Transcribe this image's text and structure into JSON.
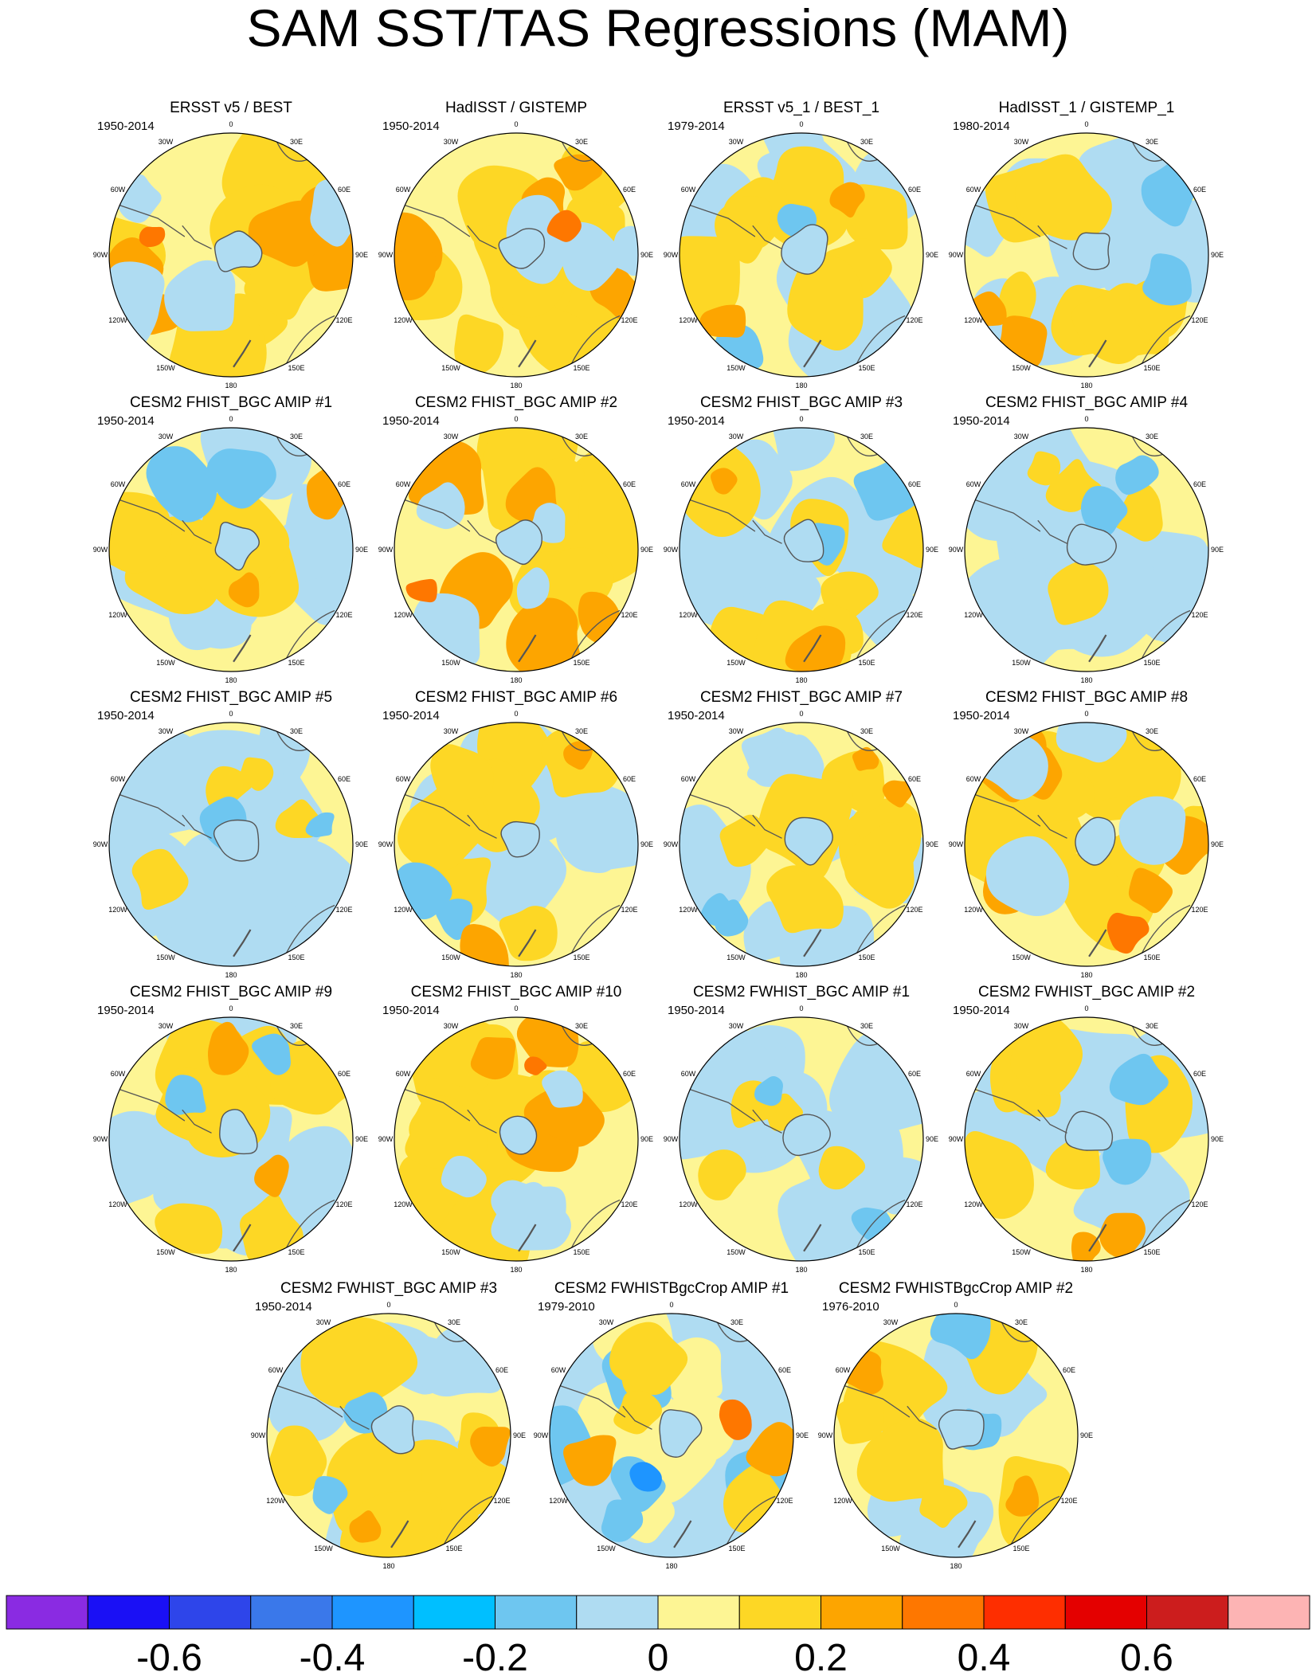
{
  "figure": {
    "title": "SAM SST/TAS Regressions (MAM)"
  },
  "chart_data": {
    "type": "polar-contour-map-panels",
    "title": "SAM SST/TAS Regressions (MAM)",
    "projection": "south-polar stereographic",
    "longitude_labels": [
      "0",
      "30E",
      "60E",
      "90E",
      "120E",
      "150E",
      "180",
      "150W",
      "120W",
      "90W",
      "60W",
      "30W"
    ],
    "panels": [
      {
        "name": "ERSST v5 / BEST",
        "period": "1950-2014",
        "pattern": "warm"
      },
      {
        "name": "HadISST / GISTEMP",
        "period": "1950-2014",
        "pattern": "warm"
      },
      {
        "name": "ERSST v5_1 / BEST_1",
        "period": "1979-2014",
        "pattern": "mixed"
      },
      {
        "name": "HadISST_1 / GISTEMP_1",
        "period": "1980-2014",
        "pattern": "mixed"
      },
      {
        "name": "CESM2 FHIST_BGC AMIP #1",
        "period": "1950-2014",
        "pattern": "mixed"
      },
      {
        "name": "CESM2 FHIST_BGC AMIP #2",
        "period": "1950-2014",
        "pattern": "warm"
      },
      {
        "name": "CESM2 FHIST_BGC AMIP #3",
        "period": "1950-2014",
        "pattern": "mixed"
      },
      {
        "name": "CESM2 FHIST_BGC AMIP #4",
        "period": "1950-2014",
        "pattern": "cool"
      },
      {
        "name": "CESM2 FHIST_BGC AMIP #5",
        "period": "1950-2014",
        "pattern": "cool"
      },
      {
        "name": "CESM2 FHIST_BGC AMIP #6",
        "period": "1950-2014",
        "pattern": "mixed"
      },
      {
        "name": "CESM2 FHIST_BGC AMIP #7",
        "period": "1950-2014",
        "pattern": "mixed"
      },
      {
        "name": "CESM2 FHIST_BGC AMIP #8",
        "period": "1950-2014",
        "pattern": "warm"
      },
      {
        "name": "CESM2 FHIST_BGC AMIP #9",
        "period": "1950-2014",
        "pattern": "mixed"
      },
      {
        "name": "CESM2 FHIST_BGC AMIP #10",
        "period": "1950-2014",
        "pattern": "warm"
      },
      {
        "name": "CESM2 FWHIST_BGC AMIP #1",
        "period": "1950-2014",
        "pattern": "cool"
      },
      {
        "name": "CESM2 FWHIST_BGC AMIP #2",
        "period": "1950-2014",
        "pattern": "mixed"
      },
      {
        "name": "CESM2 FWHIST_BGC AMIP #3",
        "period": "1950-2014",
        "pattern": "mixed"
      },
      {
        "name": "CESM2 FWHISTBgcCrop AMIP #1",
        "period": "1979-2010",
        "pattern": "strong"
      },
      {
        "name": "CESM2 FWHISTBgcCrop AMIP #2",
        "period": "1976-2010",
        "pattern": "mixed"
      }
    ],
    "colorbar": {
      "colors": [
        "#8a2be2",
        "#1a10f5",
        "#2e45ea",
        "#3a78ea",
        "#1e95ff",
        "#00bfff",
        "#6ec6f0",
        "#afdcf2",
        "#fdf594",
        "#fdd725",
        "#fda500",
        "#fe7700",
        "#fe2e00",
        "#e40000",
        "#cc1d1d",
        "#fdb4b4"
      ],
      "tick_labels": [
        "-0.6",
        "-0.4",
        "-0.2",
        "0",
        "0.2",
        "0.4",
        "0.6"
      ],
      "tick_values": [
        -0.6,
        -0.4,
        -0.2,
        0,
        0.2,
        0.4,
        0.6
      ],
      "range": [
        -0.8,
        0.8
      ]
    }
  }
}
